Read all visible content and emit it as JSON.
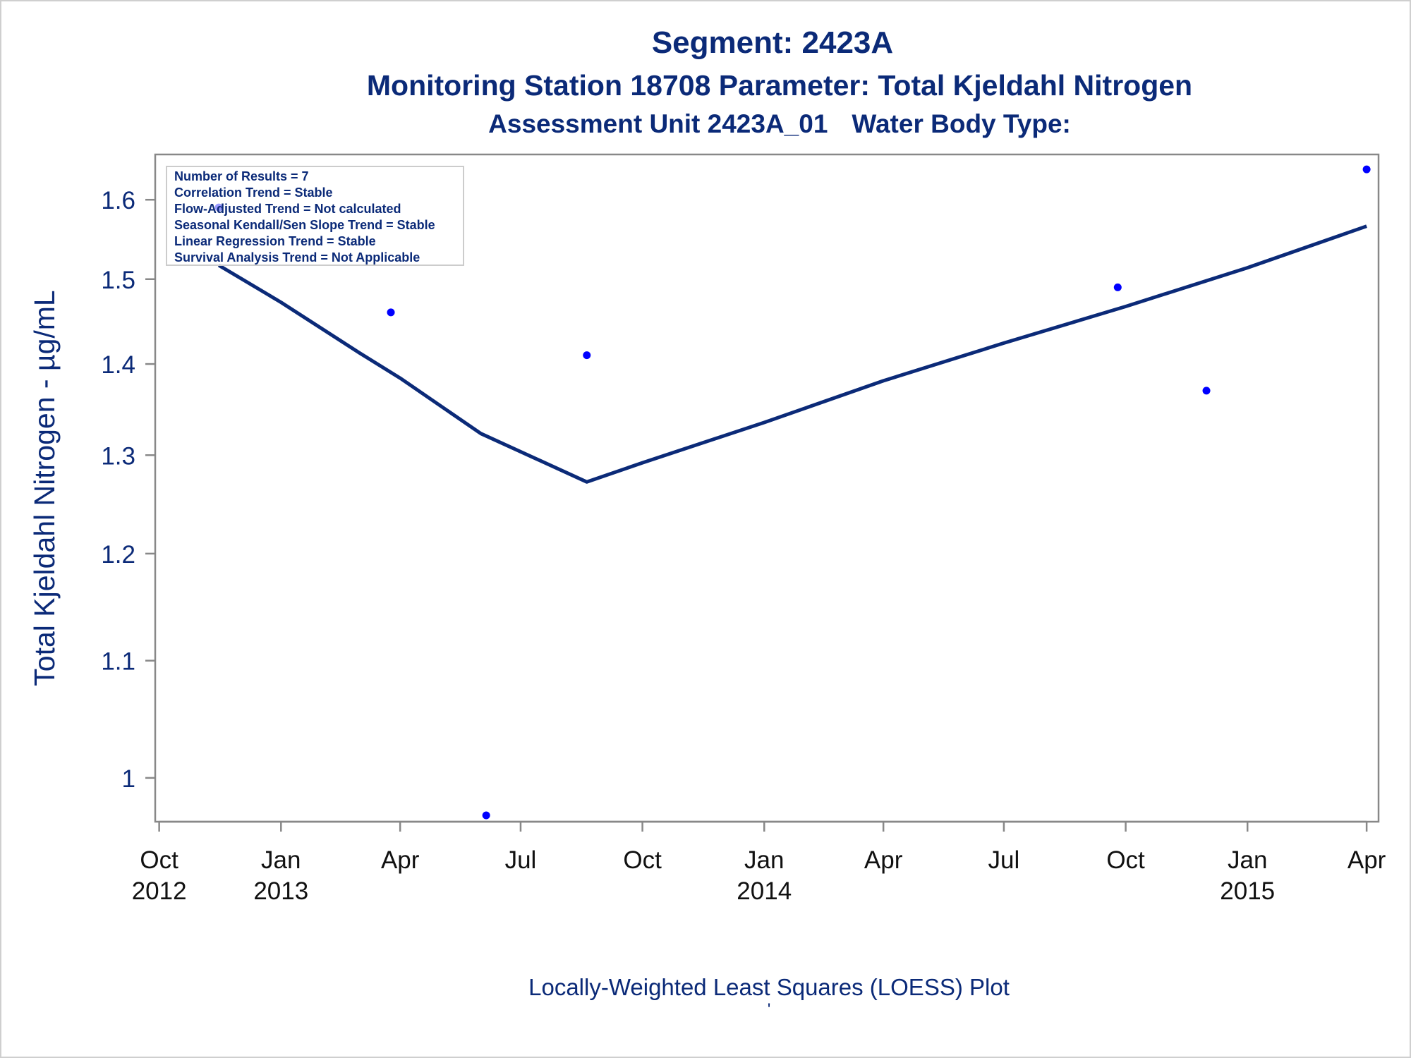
{
  "titles": {
    "line1": "Segment: 2423A",
    "line2": "Monitoring Station 18708 Parameter: Total Kjeldahl Nitrogen",
    "line3a": "Assessment Unit 2423A_01",
    "line3b": "Water Body Type:"
  },
  "footnotes": {
    "line1": "Locally-Weighted Least Squares (LOESS) Plot",
    "line2": "'"
  },
  "colors": {
    "text": "#0b2a78",
    "line": "#0b2a78",
    "points": "#0000ff",
    "axis": "#888888",
    "background": "#ffffff"
  },
  "chart_data": {
    "type": "scatter",
    "title": "Segment: 2423A",
    "ylabel": "Total Kjeldahl Nitrogen -  µg/mL",
    "xlabel": "",
    "y_scale": "log",
    "ylim": [
      0.965,
      1.66
    ],
    "xlim": [
      "2012-09-28",
      "2015-04-10"
    ],
    "y_ticks": [
      1,
      1.1,
      1.2,
      1.3,
      1.4,
      1.5,
      1.6
    ],
    "x_ticks": [
      {
        "date": "2012-10-01",
        "label1": "Oct",
        "label2": "2012"
      },
      {
        "date": "2013-01-01",
        "label1": "Jan",
        "label2": "2013"
      },
      {
        "date": "2013-04-01",
        "label1": "Apr",
        "label2": ""
      },
      {
        "date": "2013-07-01",
        "label1": "Jul",
        "label2": ""
      },
      {
        "date": "2013-10-01",
        "label1": "Oct",
        "label2": ""
      },
      {
        "date": "2014-01-01",
        "label1": "Jan",
        "label2": "2014"
      },
      {
        "date": "2014-04-01",
        "label1": "Apr",
        "label2": ""
      },
      {
        "date": "2014-07-01",
        "label1": "Jul",
        "label2": ""
      },
      {
        "date": "2014-10-01",
        "label1": "Oct",
        "label2": ""
      },
      {
        "date": "2015-01-01",
        "label1": "Jan",
        "label2": "2015"
      },
      {
        "date": "2015-04-01",
        "label1": "Apr",
        "label2": ""
      }
    ],
    "series": [
      {
        "type": "scatter",
        "points": [
          {
            "x": "2012-11-15",
            "y": 1.59
          },
          {
            "x": "2013-03-25",
            "y": 1.46
          },
          {
            "x": "2013-06-05",
            "y": 0.97
          },
          {
            "x": "2013-08-20",
            "y": 1.41
          },
          {
            "x": "2014-09-25",
            "y": 1.49
          },
          {
            "x": "2014-12-01",
            "y": 1.37
          },
          {
            "x": "2015-04-01",
            "y": 1.64
          }
        ]
      },
      {
        "type": "line",
        "points": [
          {
            "x": "2012-11-15",
            "y": 1.517
          },
          {
            "x": "2013-01-01",
            "y": 1.472
          },
          {
            "x": "2013-03-01",
            "y": 1.413
          },
          {
            "x": "2013-04-01",
            "y": 1.384
          },
          {
            "x": "2013-06-01",
            "y": 1.323
          },
          {
            "x": "2013-08-20",
            "y": 1.272
          },
          {
            "x": "2013-10-01",
            "y": 1.292
          },
          {
            "x": "2014-01-01",
            "y": 1.335
          },
          {
            "x": "2014-04-01",
            "y": 1.381
          },
          {
            "x": "2014-07-01",
            "y": 1.424
          },
          {
            "x": "2014-10-01",
            "y": 1.467
          },
          {
            "x": "2015-01-01",
            "y": 1.514
          },
          {
            "x": "2015-04-01",
            "y": 1.566
          }
        ]
      }
    ],
    "inset_legend": {
      "position": "top-left",
      "lines": [
        "Number of Results = 7",
        "Correlation Trend = Stable",
        "Flow-Adjusted Trend = Not calculated",
        "Seasonal Kendall/Sen Slope Trend = Stable",
        "Linear Regression Trend = Stable",
        "Survival Analysis Trend = Not Applicable"
      ]
    }
  }
}
